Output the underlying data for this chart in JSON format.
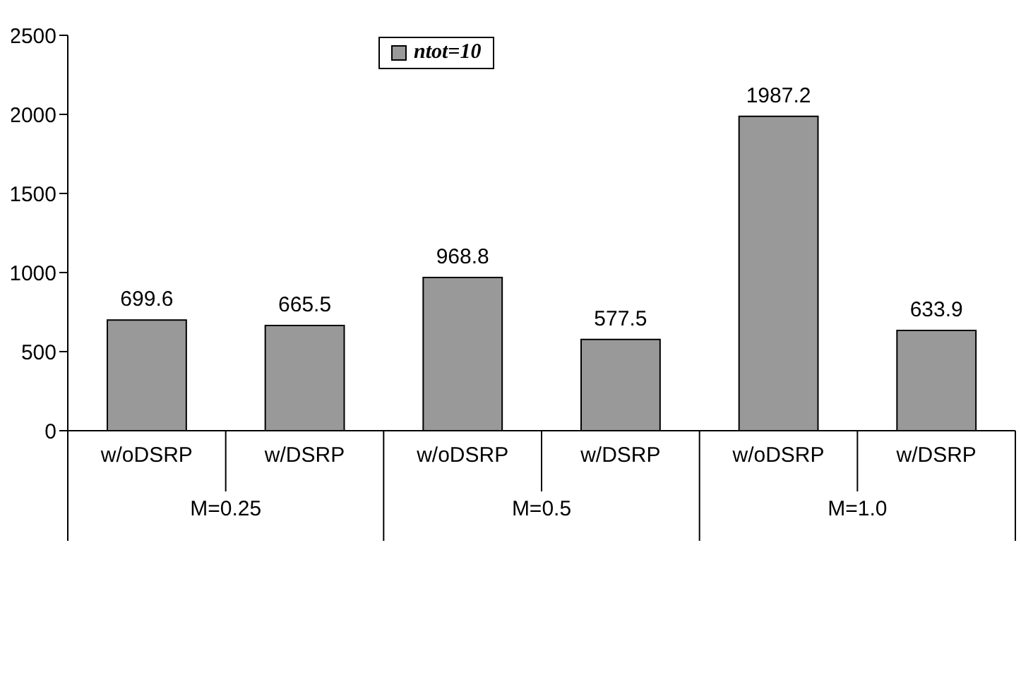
{
  "chart_data": {
    "type": "bar",
    "categories": [
      "w/oDSRP",
      "w/DSRP",
      "w/oDSRP",
      "w/DSRP",
      "w/oDSRP",
      "w/DSRP"
    ],
    "series": [
      {
        "name": "ntot=10",
        "color": "#999999",
        "values": [
          699.6,
          665.5,
          968.8,
          577.5,
          1987.2,
          633.9
        ]
      }
    ],
    "annotations": [
      "M=0.25",
      "M=0.5",
      "M=1.0"
    ],
    "ylim": [
      0,
      2500
    ],
    "yticks": [
      0,
      500,
      1000,
      1500,
      2000,
      2500
    ],
    "data_labels": true,
    "legend": "top",
    "grid": false
  }
}
